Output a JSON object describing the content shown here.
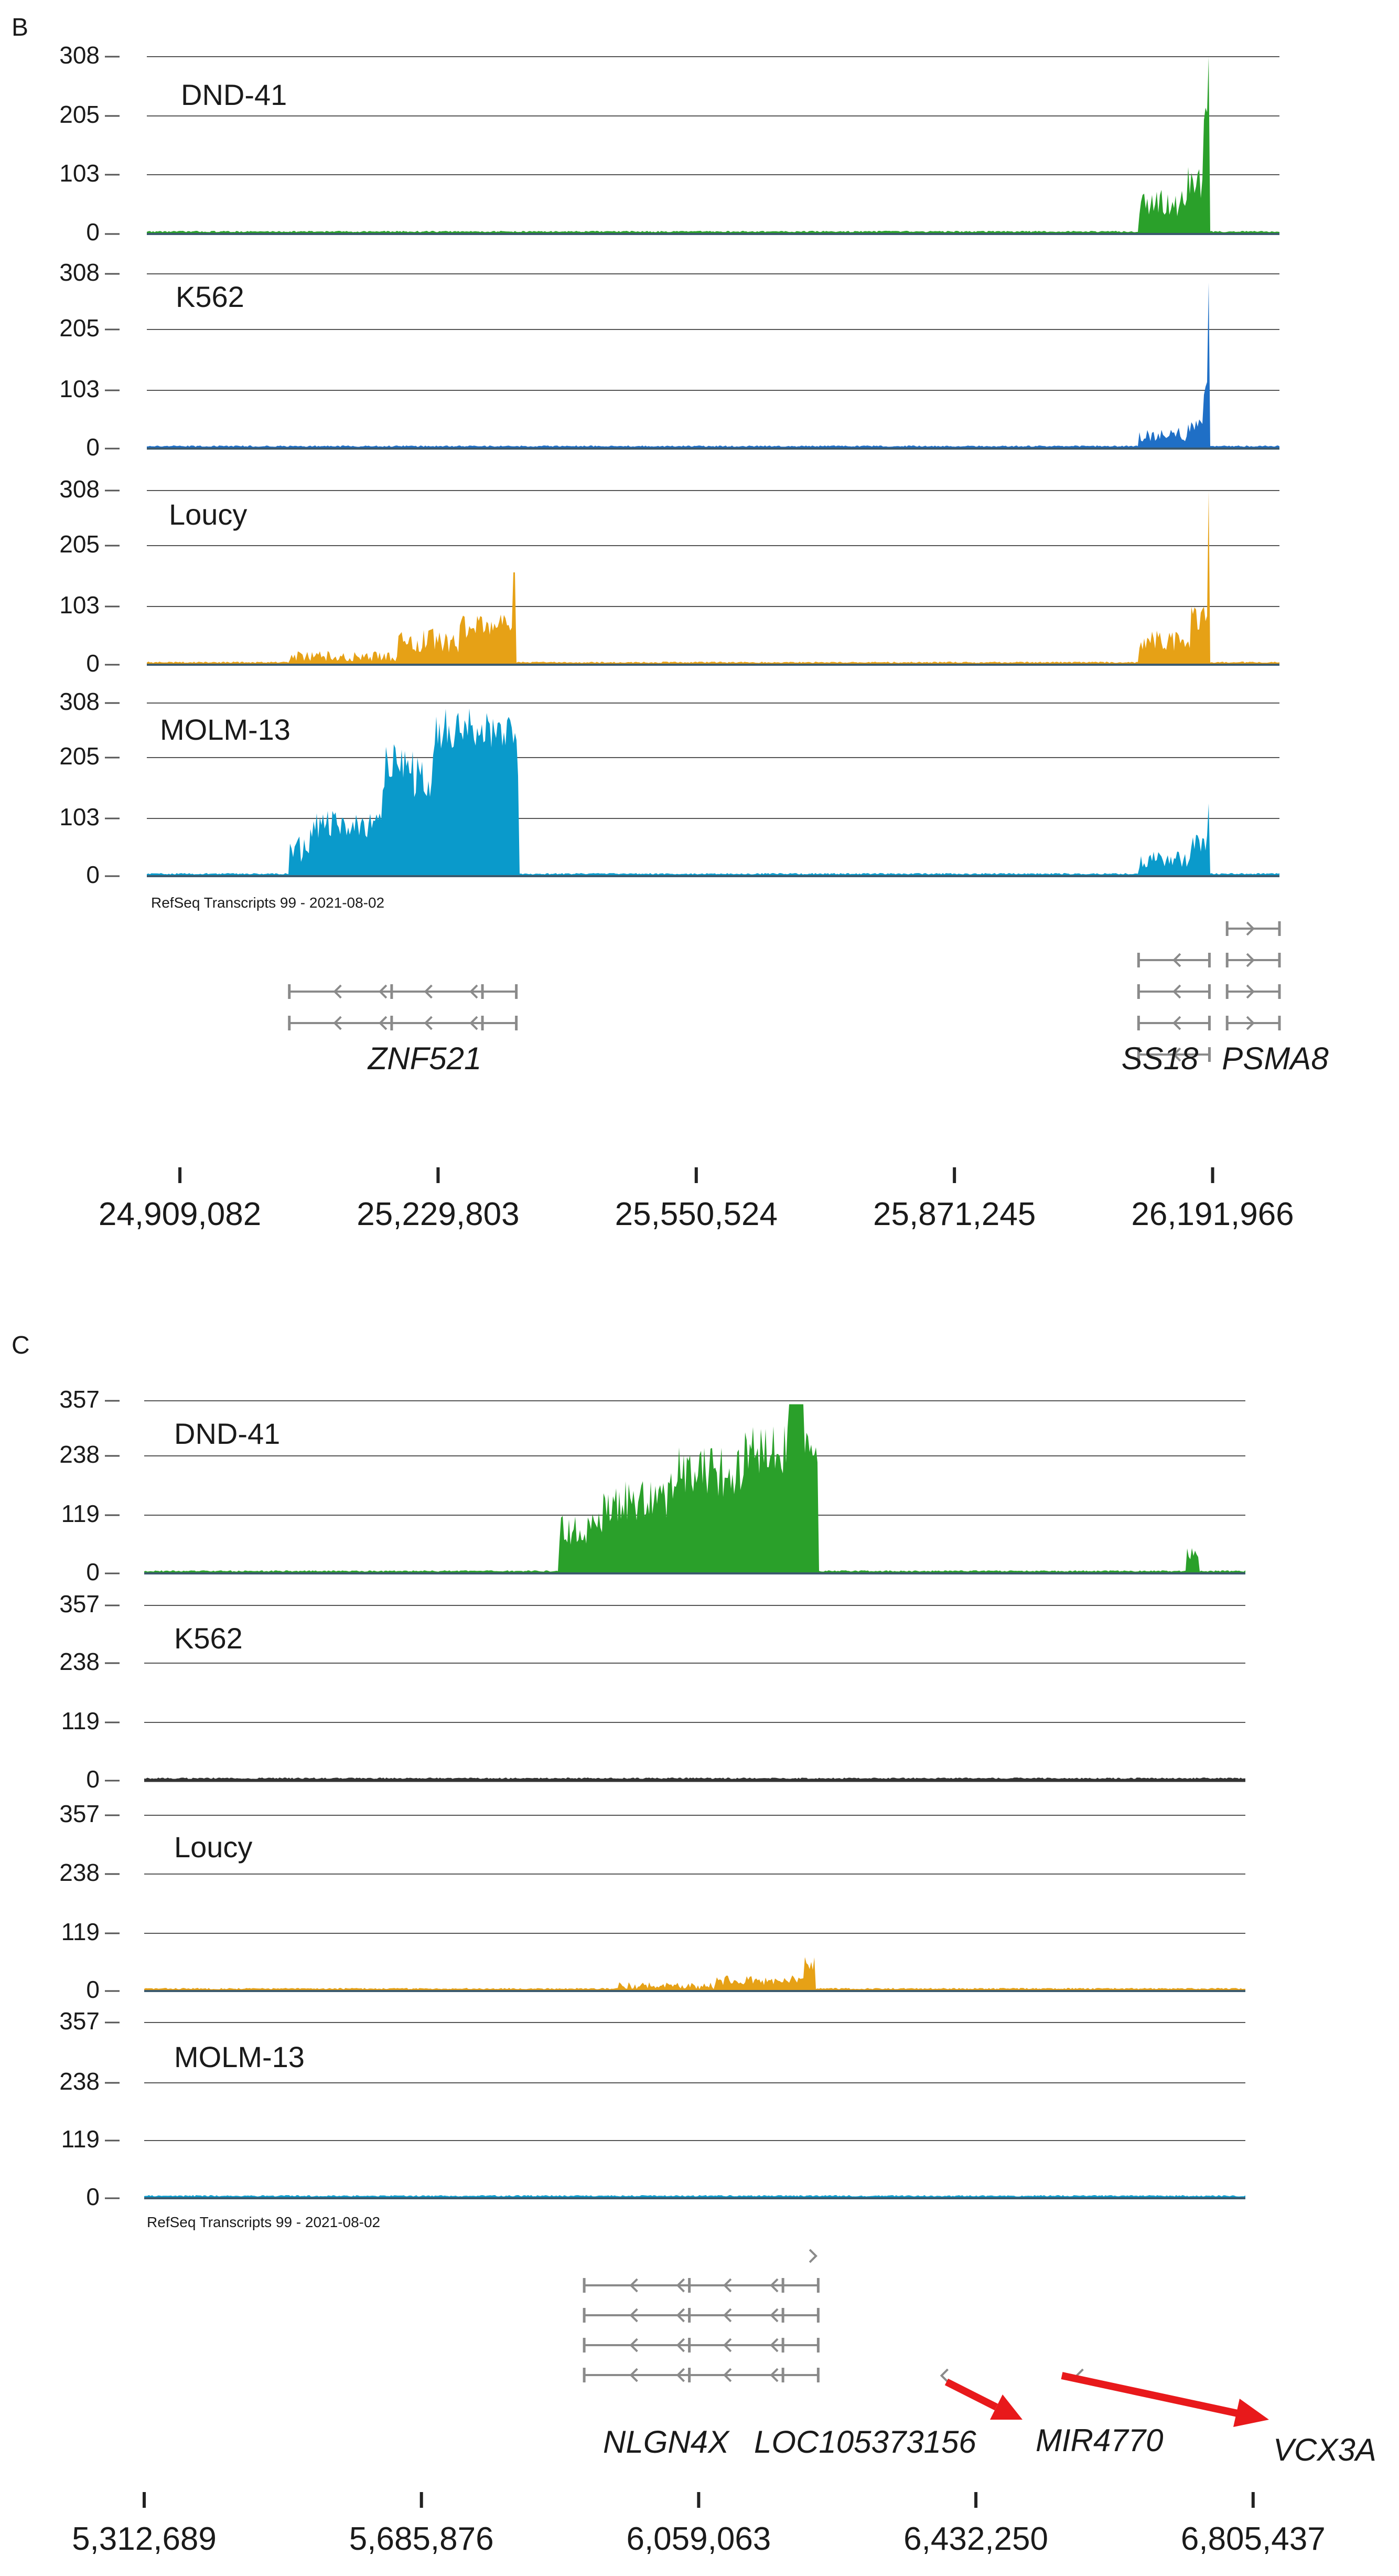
{
  "panels": [
    {
      "letter": "B",
      "tracks": [
        {
          "name": "DND-41",
          "color": "#2aa02a",
          "ticks": [
            "308",
            "205",
            "103",
            "0"
          ],
          "max": 308,
          "peaks": [
            {
              "start": 26100000,
              "end": 26188000,
              "level": 0.18,
              "jag": 0.08
            },
            {
              "start": 26160000,
              "end": 26188000,
              "level": 0.3,
              "jag": 0.1
            },
            {
              "start": 26181000,
              "end": 26188000,
              "level": 0.62,
              "jag": 0.15
            },
            {
              "start": 26185500,
              "end": 26188000,
              "level": 1.0,
              "jag": 0.0
            }
          ]
        },
        {
          "name": "K562",
          "color": "#1f6fc6",
          "ticks": [
            "308",
            "205",
            "103",
            "0"
          ],
          "max": 308,
          "peaks": [
            {
              "start": 26100000,
              "end": 26188000,
              "level": 0.08,
              "jag": 0.04
            },
            {
              "start": 26160000,
              "end": 26188000,
              "level": 0.13,
              "jag": 0.05
            },
            {
              "start": 26181000,
              "end": 26188000,
              "level": 0.35,
              "jag": 0.1
            },
            {
              "start": 26185500,
              "end": 26188000,
              "level": 0.95,
              "jag": 0.0
            }
          ]
        },
        {
          "name": "Loucy",
          "color": "#e6a116",
          "ticks": [
            "308",
            "205",
            "103",
            "0"
          ],
          "max": 308,
          "peaks": [
            {
              "start": 25045000,
              "end": 25320000,
              "level": 0.05,
              "jag": 0.03
            },
            {
              "start": 25180000,
              "end": 25325000,
              "level": 0.14,
              "jag": 0.07
            },
            {
              "start": 25255000,
              "end": 25327000,
              "level": 0.22,
              "jag": 0.07
            },
            {
              "start": 25323000,
              "end": 25327000,
              "level": 0.53,
              "jag": 0.0
            },
            {
              "start": 26100000,
              "end": 26188000,
              "level": 0.14,
              "jag": 0.06
            },
            {
              "start": 26165000,
              "end": 26188000,
              "level": 0.28,
              "jag": 0.08
            },
            {
              "start": 26185500,
              "end": 26188000,
              "level": 1.0,
              "jag": 0.0
            }
          ]
        },
        {
          "name": "MOLM-13",
          "color": "#0a9acb",
          "ticks": [
            "308",
            "205",
            "103",
            "0"
          ],
          "max": 308,
          "peaks": [
            {
              "start": 25045000,
              "end": 25330000,
              "level": 0.16,
              "jag": 0.08
            },
            {
              "start": 25070000,
              "end": 25330000,
              "level": 0.3,
              "jag": 0.08
            },
            {
              "start": 25160000,
              "end": 25330000,
              "level": 0.62,
              "jag": 0.18
            },
            {
              "start": 25225000,
              "end": 25328000,
              "level": 0.85,
              "jag": 0.12
            },
            {
              "start": 26100000,
              "end": 26188000,
              "level": 0.1,
              "jag": 0.05
            },
            {
              "start": 26165000,
              "end": 26188000,
              "level": 0.2,
              "jag": 0.06
            },
            {
              "start": 26185500,
              "end": 26188000,
              "level": 0.42,
              "jag": 0.0
            }
          ]
        }
      ],
      "refseq_label": "RefSeq Transcripts 99 - 2021-08-02",
      "genes": [
        {
          "name": "ZNF521",
          "start": 25045000,
          "end": 25327000,
          "rows": 2,
          "strand": "-"
        },
        {
          "name": "SS18",
          "start": 26100000,
          "end": 26188000,
          "rows": 4,
          "strand": "-"
        },
        {
          "name": "PSMA8",
          "start": 26210000,
          "end": 26275000,
          "rows": 4,
          "strand": "+"
        }
      ],
      "axis": {
        "domain": [
          24868000,
          26275000
        ],
        "ticks": [
          {
            "value": 24909082,
            "label": "24,909,082"
          },
          {
            "value": 25229803,
            "label": "25,229,803"
          },
          {
            "value": 25550524,
            "label": "25,550,524"
          },
          {
            "value": 25871245,
            "label": "25,871,245"
          },
          {
            "value": 26191966,
            "label": "26,191,966"
          }
        ]
      }
    },
    {
      "letter": "C",
      "tracks": [
        {
          "name": "DND-41",
          "color": "#2aa02a",
          "ticks": [
            "357",
            "238",
            "119",
            "0"
          ],
          "max": 357,
          "peaks": [
            {
              "start": 5870000,
              "end": 6220000,
              "level": 0.25,
              "jag": 0.1
            },
            {
              "start": 5930000,
              "end": 6220000,
              "level": 0.42,
              "jag": 0.12
            },
            {
              "start": 6020000,
              "end": 6220000,
              "level": 0.58,
              "jag": 0.15
            },
            {
              "start": 6120000,
              "end": 6220000,
              "level": 0.72,
              "jag": 0.15
            },
            {
              "start": 6180000,
              "end": 6200000,
              "level": 0.98,
              "jag": 0.0
            },
            {
              "start": 6715000,
              "end": 6732000,
              "level": 0.12,
              "jag": 0.04
            }
          ]
        },
        {
          "name": "K562",
          "color": "#333333",
          "ticks": [
            "357",
            "238",
            "119",
            "0"
          ],
          "max": 357,
          "peaks": []
        },
        {
          "name": "Loucy",
          "color": "#e6a116",
          "ticks": [
            "357",
            "238",
            "119",
            "0"
          ],
          "max": 357,
          "peaks": [
            {
              "start": 5950000,
              "end": 6216000,
              "level": 0.03,
              "jag": 0.02
            },
            {
              "start": 6080000,
              "end": 6216000,
              "level": 0.06,
              "jag": 0.03
            },
            {
              "start": 6200000,
              "end": 6216000,
              "level": 0.16,
              "jag": 0.04
            }
          ]
        },
        {
          "name": "MOLM-13",
          "color": "#0a9acb",
          "ticks": [
            "357",
            "238",
            "119",
            "0"
          ],
          "max": 357,
          "peaks": []
        }
      ],
      "refseq_label": "RefSeq Transcripts 99 - 2021-08-02",
      "genes": [
        {
          "name": "NLGN4X",
          "start": 5905000,
          "end": 6220000,
          "rows": 4,
          "strand": "-"
        },
        {
          "name": "LOC105373156",
          "start": 6212000,
          "end": 6222000,
          "rows": 1,
          "strand": "+"
        },
        {
          "name": "MIR4770",
          "start": 6380000,
          "end": 6392000,
          "rows": 1,
          "strand": "-"
        },
        {
          "name": "VCX3A",
          "start": 6562000,
          "end": 6574000,
          "rows": 1,
          "strand": "-"
        }
      ],
      "axis": {
        "domain": [
          5312689,
          6795000
        ],
        "ticks": [
          {
            "value": 5312689,
            "label": "5,312,689"
          },
          {
            "value": 5685876,
            "label": "5,685,876"
          },
          {
            "value": 6059063,
            "label": "6,059,063"
          },
          {
            "value": 6432250,
            "label": "6,432,250"
          },
          {
            "value": 6805437,
            "label": "6,805,437"
          }
        ]
      }
    }
  ],
  "annotation_colors": {
    "arrow": "#e8191b",
    "gene": "#8a8a8a",
    "grid": "#444444",
    "baseline": "#3c5a6e"
  }
}
